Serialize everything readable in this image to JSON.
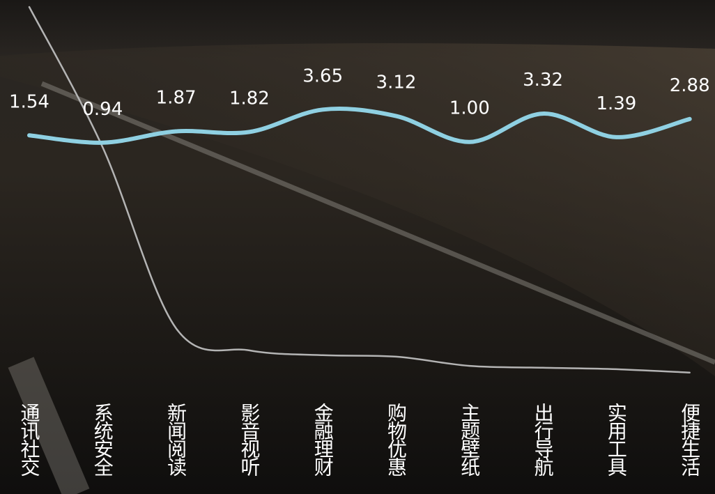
{
  "chart_data": {
    "type": "line",
    "categories": [
      "通讯社交",
      "系统安全",
      "新闻阅读",
      "影音视听",
      "金融理财",
      "购物优惠",
      "主题壁纸",
      "出行导航",
      "实用工具",
      "便捷生活"
    ],
    "series": [
      {
        "color": "#8fd0e2",
        "values": [
          1.54,
          0.94,
          1.87,
          1.82,
          3.65,
          3.12,
          1.0,
          3.32,
          1.39,
          2.88
        ],
        "value_labels": [
          "1.54",
          "0.94",
          "1.87",
          "1.82",
          "3.65",
          "3.12",
          "1.00",
          "3.32",
          "1.39",
          "2.88"
        ]
      },
      {
        "color": "#b4b4b4",
        "axis": "y2",
        "values": [
          100,
          62,
          13,
          7,
          5.7,
          5.3,
          2.8,
          2.3,
          1.9,
          1
        ]
      }
    ],
    "ylim": [
      -18.2,
      12.06
    ],
    "y2lim": [
      0,
      100
    ],
    "smooth": true
  }
}
